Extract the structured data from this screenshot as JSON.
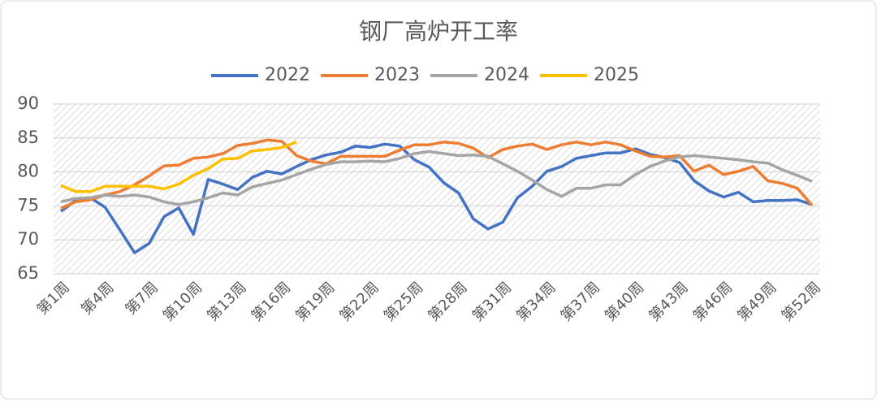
{
  "chart_data": {
    "type": "line",
    "title": "钢厂高炉开工率",
    "categories": [
      "第1周",
      null,
      null,
      "第4周",
      null,
      null,
      "第7周",
      null,
      null,
      "第10周",
      null,
      null,
      "第13周",
      null,
      null,
      "第16周",
      null,
      null,
      "第19周",
      null,
      null,
      "第22周",
      null,
      null,
      "第25周",
      null,
      null,
      "第28周",
      null,
      null,
      "第31周",
      null,
      null,
      "第34周",
      null,
      null,
      "第37周",
      null,
      null,
      "第40周",
      null,
      null,
      "第43周",
      null,
      null,
      "第46周",
      null,
      null,
      "第49周",
      null,
      null,
      "第52周"
    ],
    "series": [
      {
        "name": "2022",
        "color": "#4472c4",
        "values": [
          74.2,
          75.8,
          76.2,
          74.8,
          71.5,
          68.1,
          69.5,
          73.4,
          74.7,
          70.8,
          78.9,
          78.2,
          77.4,
          79.2,
          80.1,
          79.7,
          80.8,
          81.8,
          82.5,
          82.9,
          83.8,
          83.6,
          84.1,
          83.8,
          81.8,
          80.7,
          78.4,
          76.9,
          73.1,
          71.6,
          72.6,
          76.2,
          77.9,
          80.1,
          80.8,
          82.0,
          82.4,
          82.8,
          82.8,
          83.4,
          82.6,
          82.1,
          81.4,
          78.7,
          77.2,
          76.3,
          77.0,
          75.6,
          75.8,
          75.8,
          75.9,
          75.2
        ]
      },
      {
        "name": "2023",
        "color": "#ed7d31",
        "values": [
          74.6,
          75.6,
          75.9,
          76.6,
          77.1,
          78.1,
          79.4,
          80.9,
          81.0,
          82.0,
          82.2,
          82.7,
          83.9,
          84.2,
          84.7,
          84.5,
          82.4,
          81.6,
          81.2,
          82.3,
          82.3,
          82.3,
          82.3,
          83.2,
          84.0,
          84.0,
          84.4,
          84.2,
          83.5,
          82.1,
          83.3,
          83.8,
          84.1,
          83.3,
          84.0,
          84.4,
          84.0,
          84.4,
          84.0,
          83.1,
          82.3,
          82.2,
          82.4,
          80.1,
          81.0,
          79.6,
          80.1,
          80.8,
          78.7,
          78.3,
          77.6,
          75.1
        ]
      },
      {
        "name": "2024",
        "color": "#a5a5a5",
        "values": [
          75.6,
          76.1,
          76.2,
          76.6,
          76.4,
          76.6,
          76.3,
          75.6,
          75.2,
          75.6,
          76.2,
          76.9,
          76.6,
          77.8,
          78.3,
          78.8,
          79.6,
          80.4,
          81.1,
          81.5,
          81.5,
          81.6,
          81.5,
          82.0,
          82.7,
          83.0,
          82.7,
          82.4,
          82.5,
          82.3,
          81.2,
          80.1,
          78.8,
          77.4,
          76.4,
          77.6,
          77.6,
          78.1,
          78.1,
          79.6,
          80.8,
          81.6,
          82.2,
          82.4,
          82.2,
          82.0,
          81.8,
          81.5,
          81.3,
          80.3,
          79.5,
          78.6
        ]
      },
      {
        "name": "2025",
        "color": "#ffc000",
        "values": [
          78.0,
          77.1,
          77.1,
          77.9,
          77.9,
          77.9,
          77.9,
          77.5,
          78.2,
          79.5,
          80.5,
          81.9,
          82.0,
          83.1,
          83.3,
          83.6,
          84.4,
          null,
          null,
          null,
          null,
          null,
          null,
          null,
          null,
          null,
          null,
          null,
          null,
          null,
          null,
          null,
          null,
          null,
          null,
          null,
          null,
          null,
          null,
          null,
          null,
          null,
          null,
          null,
          null,
          null,
          null,
          null,
          null,
          null,
          null,
          null
        ]
      }
    ],
    "ylim": [
      65,
      90
    ],
    "yticks": [
      65,
      70,
      75,
      80,
      85,
      90
    ],
    "grid": true,
    "legend": "top"
  }
}
